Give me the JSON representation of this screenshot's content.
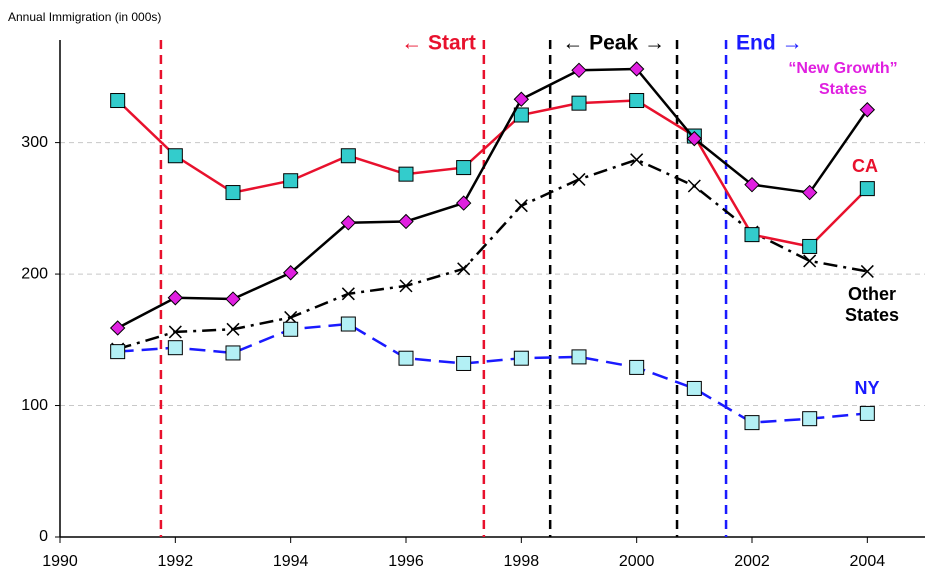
{
  "chart_data": {
    "type": "line",
    "y_label": "Annual Immigration (in 000s)",
    "x": [
      1991,
      1992,
      1993,
      1994,
      1995,
      1996,
      1997,
      1998,
      1999,
      2000,
      2001,
      2002,
      2003,
      2004
    ],
    "series": [
      {
        "name": "Other States",
        "color": "#000000",
        "marker": "x",
        "marker_color": "#000000",
        "dash": "dashdot",
        "values": [
          143,
          156,
          158,
          167,
          185,
          191,
          204,
          252,
          272,
          287,
          267,
          232,
          210,
          202
        ]
      },
      {
        "name": "NY",
        "color": "#1a1aff",
        "marker": "square",
        "marker_color": "#b3f0f5",
        "dash": "dashed",
        "values": [
          141,
          144,
          140,
          158,
          162,
          136,
          132,
          136,
          137,
          129,
          113,
          87,
          90,
          94
        ]
      },
      {
        "name": "CA",
        "color": "#e8112d",
        "marker": "square",
        "marker_color": "#33cccc",
        "dash": "solid",
        "values": [
          332,
          290,
          262,
          271,
          290,
          276,
          281,
          321,
          330,
          332,
          305,
          230,
          221,
          265
        ]
      },
      {
        "name": "“New Growth” States",
        "color": "#000000",
        "marker": "diamond",
        "marker_color": "#e020e0",
        "dash": "solid",
        "values": [
          159,
          182,
          181,
          201,
          239,
          240,
          254,
          333,
          355,
          356,
          303,
          268,
          262,
          325
        ]
      }
    ],
    "label_colors": [
      "#000000",
      "#1a1aff",
      "#e8112d",
      "#e020e0"
    ],
    "vlines": [
      {
        "x": 1991.75,
        "color": "#e8112d"
      },
      {
        "x": 1997.35,
        "color": "#e8112d"
      },
      {
        "x": 1998.5,
        "color": "#000000"
      },
      {
        "x": 2000.7,
        "color": "#000000"
      },
      {
        "x": 2001.55,
        "color": "#1a1aff"
      }
    ],
    "annotations": [
      {
        "text": "← Start",
        "color": "#e8112d"
      },
      {
        "text": "← Peak →",
        "color": "#000000"
      },
      {
        "text": "End →",
        "color": "#1a1aff"
      }
    ],
    "xlim": [
      1990,
      2005
    ],
    "ylim": [
      0,
      375
    ],
    "xticks": [
      1990,
      1992,
      1994,
      1996,
      1998,
      2000,
      2002,
      2004
    ],
    "yticks": [
      0,
      100,
      200,
      300
    ],
    "grid": true
  }
}
